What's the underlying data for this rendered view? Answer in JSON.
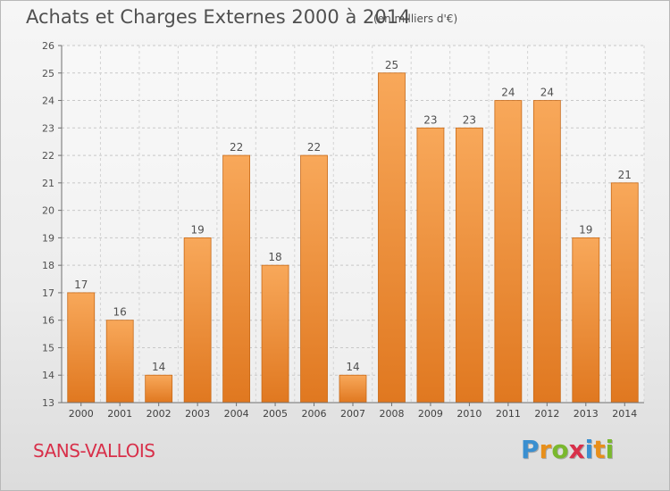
{
  "header": {
    "title": "Achats et Charges Externes 2000 à 2014",
    "subtitle": "(en milliers d'€)"
  },
  "footer": {
    "commune": "SANS-VALLOIS",
    "logo_letters": [
      "P",
      "r",
      "o",
      "x",
      "i",
      "t",
      "i"
    ],
    "logo_colors": [
      "#3a8fd0",
      "#e88f1a",
      "#7ab82e",
      "#d8304a",
      "#3a8fd0",
      "#e88f1a",
      "#7ab82e"
    ]
  },
  "chart_data": {
    "type": "bar",
    "title": "Achats et Charges Externes 2000 à 2014",
    "subtitle": "(en milliers d'€)",
    "categories": [
      "2000",
      "2001",
      "2002",
      "2003",
      "2004",
      "2005",
      "2006",
      "2007",
      "2008",
      "2009",
      "2010",
      "2011",
      "2012",
      "2013",
      "2014"
    ],
    "values": [
      17,
      16,
      14,
      19,
      22,
      18,
      22,
      14,
      25,
      23,
      23,
      24,
      24,
      19,
      21
    ],
    "ylim": [
      13,
      26
    ],
    "yticks": [
      13,
      14,
      15,
      16,
      17,
      18,
      19,
      20,
      21,
      22,
      23,
      24,
      25,
      26
    ],
    "xlabel": "",
    "ylabel": "",
    "grid": true,
    "bar_color_top": "#f8a85a",
    "bar_color_bottom": "#e07820",
    "bar_edge": "#c86a18"
  }
}
